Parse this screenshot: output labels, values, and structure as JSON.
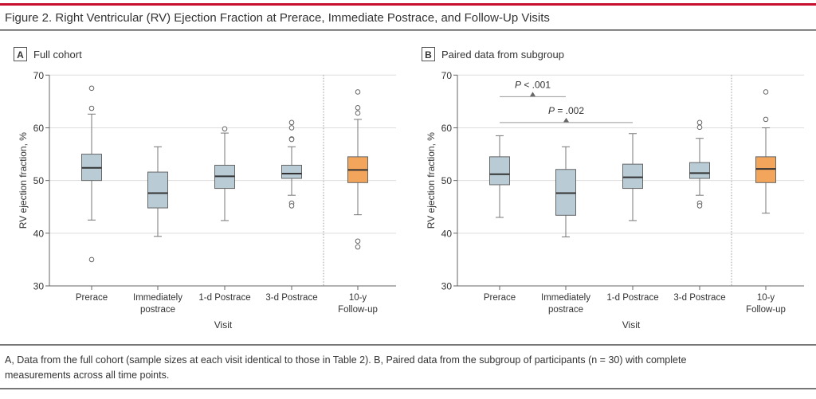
{
  "figure": {
    "title": "Figure 2. Right Ventricular (RV) Ejection Fraction at Prerace, Immediate Postrace, and Follow-Up Visits",
    "caption_line1": "A, Data from the full cohort (sample sizes at each visit identical to those in Table 2). B, Paired data from the subgroup of participants (n = 30) with complete",
    "caption_line2": "measurements across all time points.",
    "accent_color": "#c8102e"
  },
  "chart_data": [
    {
      "type": "box",
      "panel_letter": "A",
      "panel_title": "Full cohort",
      "xlabel": "Visit",
      "ylabel": "RV ejection fraction, %",
      "ylim": [
        30,
        70
      ],
      "yticks": [
        "30",
        "40",
        "50",
        "60",
        "70"
      ],
      "grid": true,
      "categories": [
        [
          "Prerace"
        ],
        [
          "Immediately",
          "postrace"
        ],
        [
          "1-d Postrace"
        ],
        [
          "3-d Postrace"
        ],
        [
          "10-y",
          "Follow-up"
        ]
      ],
      "box_colors": [
        "#b9ccd6",
        "#b9ccd6",
        "#b9ccd6",
        "#b9ccd6",
        "#f4a55c"
      ],
      "boxes": [
        {
          "min": 42.5,
          "q1": 50.0,
          "median": 52.4,
          "q3": 55.0,
          "max": 62.6,
          "outliers": [
            67.5,
            63.7,
            35.0
          ]
        },
        {
          "min": 39.4,
          "q1": 44.8,
          "median": 47.6,
          "q3": 51.6,
          "max": 56.4,
          "outliers": []
        },
        {
          "min": 42.4,
          "q1": 48.5,
          "median": 50.8,
          "q3": 52.9,
          "max": 59.0,
          "outliers": [
            59.8
          ]
        },
        {
          "min": 47.2,
          "q1": 50.4,
          "median": 51.3,
          "q3": 52.9,
          "max": 56.4,
          "outliers": [
            61.0,
            60.0,
            57.9,
            57.8,
            45.7,
            45.2
          ]
        },
        {
          "min": 43.5,
          "q1": 49.6,
          "median": 52.0,
          "q3": 54.5,
          "max": 61.6,
          "outliers": [
            66.8,
            63.8,
            62.8,
            38.5,
            37.4
          ]
        }
      ],
      "annotations": []
    },
    {
      "type": "box",
      "panel_letter": "B",
      "panel_title": "Paired data from subgroup",
      "xlabel": "Visit",
      "ylabel": "RV ejection fraction, %",
      "ylim": [
        30,
        70
      ],
      "yticks": [
        "30",
        "40",
        "50",
        "60",
        "70"
      ],
      "grid": true,
      "categories": [
        [
          "Prerace"
        ],
        [
          "Immediately",
          "postrace"
        ],
        [
          "1-d Postrace"
        ],
        [
          "3-d Postrace"
        ],
        [
          "10-y",
          "Follow-up"
        ]
      ],
      "box_colors": [
        "#b9ccd6",
        "#b9ccd6",
        "#b9ccd6",
        "#b9ccd6",
        "#f4a55c"
      ],
      "boxes": [
        {
          "min": 43.0,
          "q1": 49.2,
          "median": 51.2,
          "q3": 54.5,
          "max": 58.5,
          "outliers": []
        },
        {
          "min": 39.3,
          "q1": 43.4,
          "median": 47.6,
          "q3": 52.1,
          "max": 56.4,
          "outliers": []
        },
        {
          "min": 42.4,
          "q1": 48.5,
          "median": 50.6,
          "q3": 53.1,
          "max": 58.9,
          "outliers": []
        },
        {
          "min": 47.2,
          "q1": 50.4,
          "median": 51.4,
          "q3": 53.4,
          "max": 58.0,
          "outliers": [
            61.0,
            60.1,
            45.7,
            45.2
          ]
        },
        {
          "min": 43.8,
          "q1": 49.6,
          "median": 52.2,
          "q3": 54.5,
          "max": 60.0,
          "outliers": [
            66.8,
            61.6
          ]
        }
      ],
      "annotations": [
        {
          "p_italic": "P",
          "text": " < .001",
          "from": 0,
          "to": 1,
          "y": 65.9
        },
        {
          "p_italic": "P",
          "text": " = .002",
          "from": 0,
          "to": 2,
          "y": 61.0
        }
      ]
    }
  ]
}
